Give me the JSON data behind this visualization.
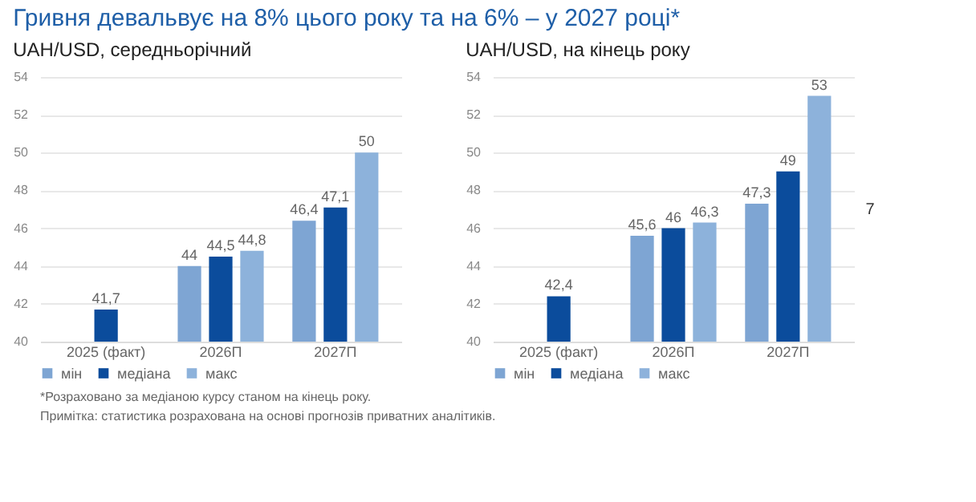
{
  "chart_data": [
    {
      "type": "bar",
      "title": "Гривня девальвує на 8% цього року та на 6% – у 2027 році*",
      "subtitle": "UAH/USD, середньорічний",
      "categories": [
        "2025 (факт)",
        "2026П",
        "2027П"
      ],
      "series": [
        {
          "name": "мін",
          "color": "#7ea5d3",
          "values": [
            null,
            44,
            46.4
          ],
          "value_labels": [
            null,
            "44",
            "46,4"
          ]
        },
        {
          "name": "медіана",
          "color": "#0b4c9c",
          "values": [
            41.7,
            44.5,
            47.1
          ],
          "value_labels": [
            "41,7",
            "44,5",
            "47,1"
          ]
        },
        {
          "name": "макс",
          "color": "#8db2db",
          "values": [
            null,
            44.8,
            50
          ],
          "value_labels": [
            null,
            "44,8",
            "50"
          ]
        }
      ],
      "ylim": [
        40,
        54
      ],
      "yticks": [
        40,
        42,
        44,
        46,
        48,
        50,
        52,
        54
      ],
      "grid": "y",
      "legend": "bottom",
      "annotations": [
        "*Розраховано за медіаною курсу станом на кінець року.",
        "Примітка: статистика розрахована на основі прогнозів приватних аналітиків."
      ]
    },
    {
      "type": "bar",
      "subtitle": "UAH/USD, на кінець року",
      "categories": [
        "2025 (факт)",
        "2026П",
        "2027П"
      ],
      "series": [
        {
          "name": "мін",
          "color": "#7ea5d3",
          "values": [
            null,
            45.6,
            47.3
          ],
          "value_labels": [
            null,
            "45,6",
            "47,3"
          ]
        },
        {
          "name": "медіана",
          "color": "#0b4c9c",
          "values": [
            42.4,
            46,
            49
          ],
          "value_labels": [
            "42,4",
            "46",
            "49"
          ]
        },
        {
          "name": "макс",
          "color": "#8db2db",
          "values": [
            null,
            46.3,
            53
          ],
          "value_labels": [
            null,
            "46,3",
            "53"
          ]
        }
      ],
      "ylim": [
        40,
        54
      ],
      "yticks": [
        40,
        42,
        44,
        46,
        48,
        50,
        52,
        54
      ],
      "grid": "y",
      "legend": "bottom",
      "annotations": [
        "7"
      ]
    }
  ]
}
